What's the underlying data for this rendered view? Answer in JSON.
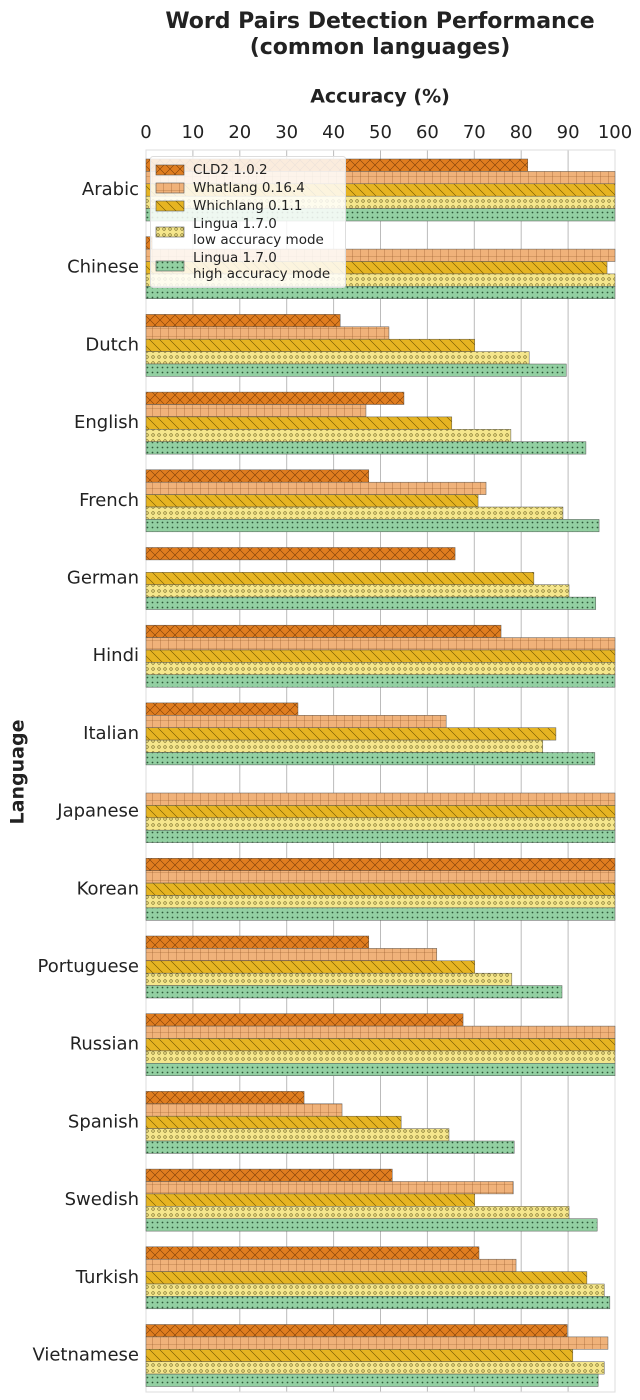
{
  "chart_data": {
    "type": "hbar",
    "title": "Word Pairs Detection Performance\n(common languages)",
    "xlabel": "Accuracy (%)",
    "ylabel": "Language",
    "categories": [
      "Arabic",
      "Chinese",
      "Dutch",
      "English",
      "French",
      "German",
      "Hindi",
      "Italian",
      "Japanese",
      "Korean",
      "Portuguese",
      "Russian",
      "Spanish",
      "Swedish",
      "Turkish",
      "Vietnamese"
    ],
    "series": [
      {
        "name": "CLD2 1.0.2",
        "color": "#e07d1f",
        "values": [
          81.4,
          1.3,
          41.4,
          55,
          47.5,
          65.9,
          75.7,
          32.4,
          0,
          100,
          47.5,
          67.6,
          33.7,
          52.5,
          71,
          89.8
        ]
      },
      {
        "name": "Whatlang 0.16.4",
        "color": "#f0b27a",
        "values": [
          100,
          100,
          51.8,
          46.9,
          72.5,
          0,
          100,
          64,
          100,
          100,
          62,
          100,
          41.8,
          78.3,
          78.9,
          98.5
        ]
      },
      {
        "name": "Whichlang 0.1.1",
        "color": "#e6b422",
        "values": [
          100,
          98.3,
          70.1,
          65.2,
          70.8,
          82.7,
          100,
          87.4,
          100,
          100,
          70.1,
          100,
          54.4,
          70.1,
          94,
          91
        ]
      },
      {
        "name": "Lingua 1.7.0\nlow accuracy mode",
        "color": "#f5e68c",
        "values": [
          100,
          100,
          81.7,
          77.8,
          88.9,
          90.2,
          100,
          84.6,
          100,
          100,
          78,
          100,
          64.6,
          90.2,
          97.7,
          97.7
        ]
      },
      {
        "name": "Lingua 1.7.0\nhigh accuracy mode",
        "color": "#93d0a2",
        "values": [
          100,
          100,
          89.6,
          93.8,
          96.6,
          95.9,
          100,
          95.7,
          100,
          100,
          88.7,
          100,
          78.5,
          96.2,
          98.9,
          96.4
        ]
      }
    ],
    "xlim": [
      0,
      100
    ],
    "xticks": [
      0,
      10,
      20,
      30,
      40,
      50,
      60,
      70,
      80,
      90,
      100
    ],
    "grid": true,
    "legend": "upper left"
  }
}
